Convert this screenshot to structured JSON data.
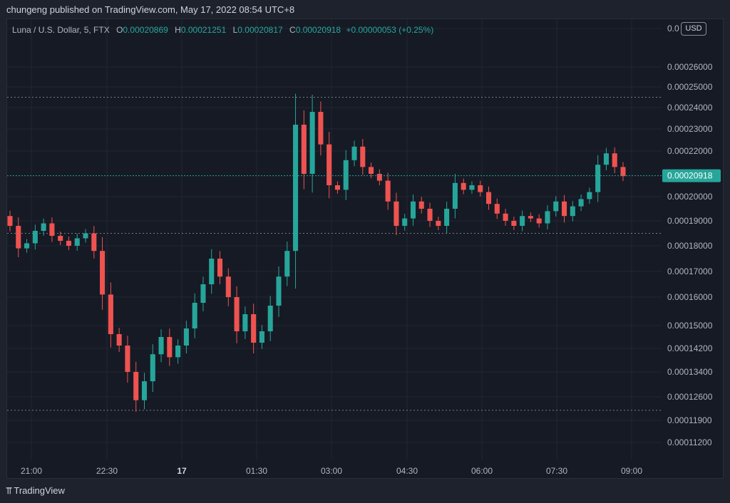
{
  "header": {
    "publish_text": "chungeng published on TradingView.com, May 17, 2022 08:54 UTC+8"
  },
  "legend": {
    "symbol": "Luna / U.S. Dollar, 5, FTX",
    "o_label": "O",
    "o_value": "0.00020869",
    "h_label": "H",
    "h_value": "0.00021251",
    "l_label": "L",
    "l_value": "0.00020817",
    "c_label": "C",
    "c_value": "0.00020918",
    "change": "+0.00000053 (+0.25%)"
  },
  "currency_badge": "USD",
  "last_price_label": "0.00020918",
  "watermark": {
    "logo": "⫪",
    "text": "TradingView"
  },
  "colors": {
    "up": "#26a69a",
    "down": "#ef5350",
    "background": "#161a25",
    "grid": "#232734",
    "text": "#b2b5be"
  },
  "chart_data": {
    "type": "candlestick",
    "title": "Luna / U.S. Dollar, 5, FTX",
    "y_axis_ticks": [
      "0.0",
      "0.00026000",
      "0.00025000",
      "0.00024000",
      "0.00023000",
      "0.00022000",
      "0.00020000",
      "0.00019000",
      "0.00018000",
      "0.00017000",
      "0.00016000",
      "0.00015000",
      "0.00014200",
      "0.00013400",
      "0.00012600",
      "0.00011900",
      "0.00011200"
    ],
    "x_axis_ticks": [
      "21:00",
      "22:30",
      "17",
      "01:30",
      "03:00",
      "04:30",
      "06:00",
      "07:30",
      "09:00"
    ],
    "bold_tick": "17",
    "horizontal_levels": [
      0.000245,
      0.000185,
      0.000122
    ],
    "last_price": 0.00020918,
    "close_series": [
      0.000188,
      0.000179,
      0.000181,
      0.000186,
      0.000189,
      0.000184,
      0.000182,
      0.00018,
      0.000183,
      0.000185,
      0.000178,
      0.000161,
      0.000147,
      0.000143,
      0.000134,
      0.000125,
      0.000131,
      0.00014,
      0.000146,
      0.000139,
      0.000143,
      0.000149,
      0.000158,
      0.000165,
      0.000175,
      0.000168,
      0.00016,
      0.000148,
      0.000154,
      0.000144,
      0.000148,
      0.000157,
      0.000168,
      0.000178,
      0.000232,
      0.00021,
      0.000238,
      0.000223,
      0.000205,
      0.000203,
      0.000216,
      0.000222,
      0.000213,
      0.00021,
      0.000207,
      0.000198,
      0.000188,
      0.000191,
      0.000198,
      0.000195,
      0.00019,
      0.000188,
      0.000195,
      0.000206,
      0.000203,
      0.000205,
      0.000202,
      0.000197,
      0.000193,
      0.00019,
      0.000188,
      0.000192,
      0.000191,
      0.000189,
      0.000194,
      0.000198,
      0.000192,
      0.000196,
      0.000199,
      0.000202,
      0.000214,
      0.000219,
      0.000213,
      0.000209
    ]
  }
}
